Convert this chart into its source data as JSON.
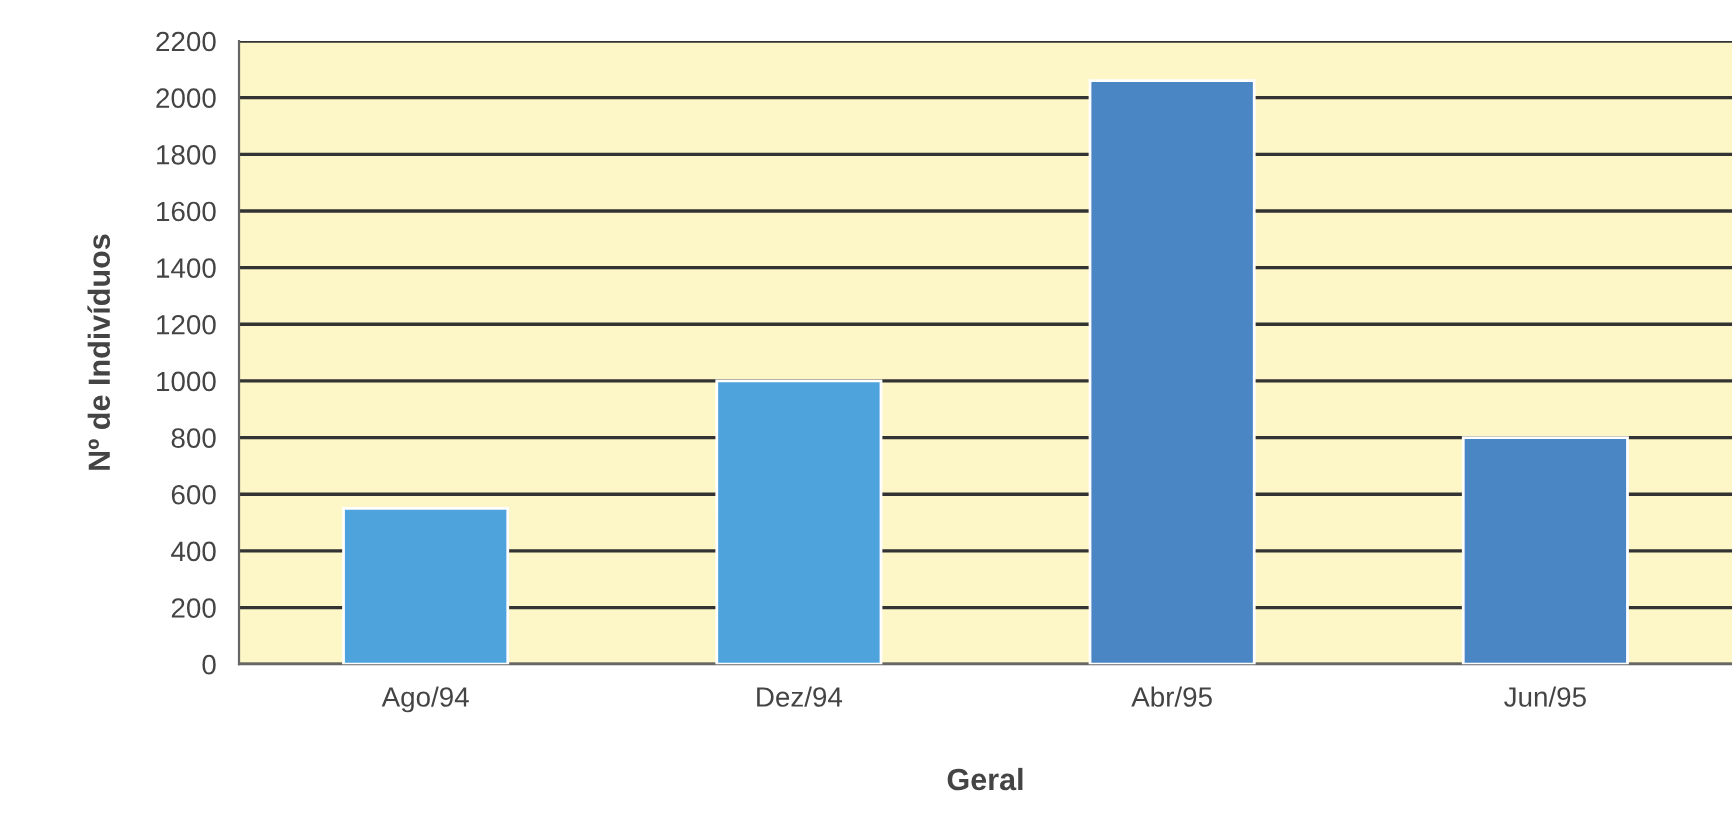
{
  "chart_data": {
    "type": "bar",
    "xlabel": "Geral",
    "ylabel": "Nº de Indivíduos",
    "categories": [
      "Ago/94",
      "Dez/94",
      "Abr/95",
      "Jun/95"
    ],
    "values": [
      550,
      1000,
      2060,
      800
    ],
    "colors": [
      "#4fa3dc",
      "#4fa3dc",
      "#4a86c4",
      "#4a86c4"
    ],
    "ylim": [
      0,
      2200
    ],
    "yticks": [
      0,
      200,
      400,
      600,
      800,
      1000,
      1200,
      1400,
      1600,
      1800,
      2000,
      2200
    ],
    "grid": "y"
  }
}
